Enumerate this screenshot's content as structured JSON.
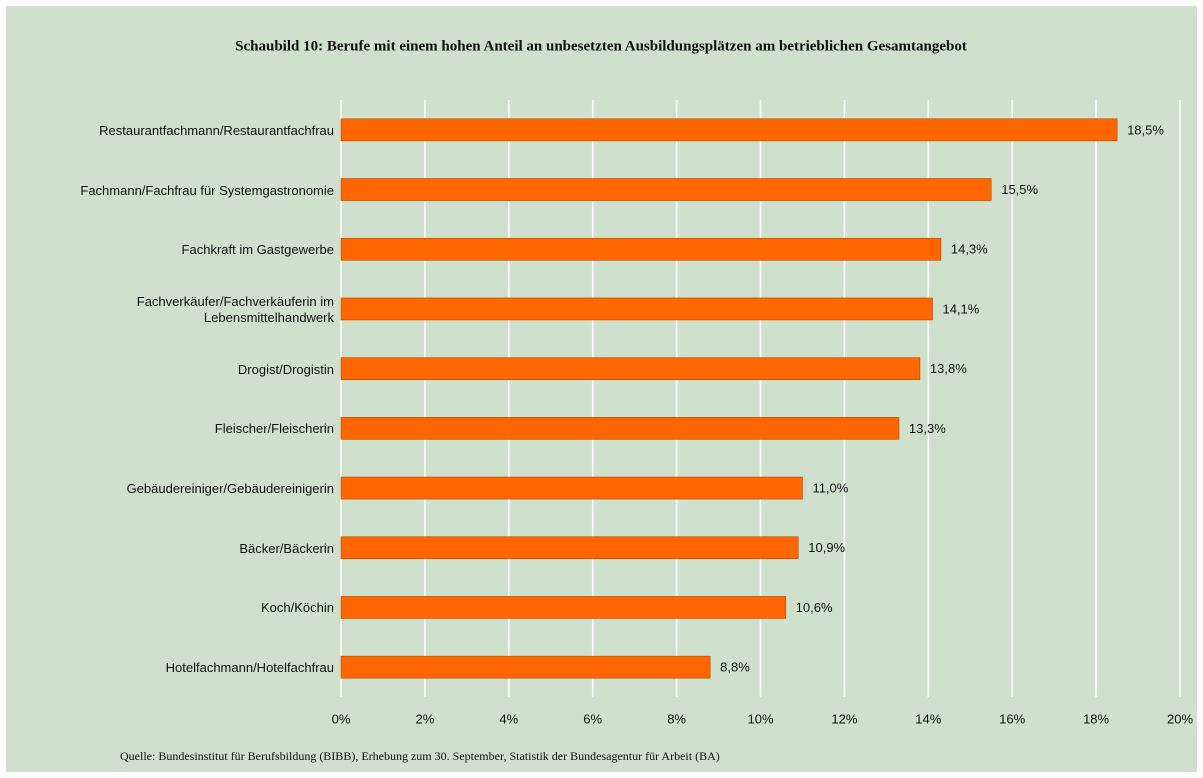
{
  "chart_data": {
    "type": "barh",
    "title": "Schaubild 10: Berufe mit einem hohen Anteil an unbesetzten Ausbildungsplätzen am betrieblichen Gesamtangebot",
    "source": "Quelle: Bundesinstitut für Berufsbildung (BIBB), Erhebung zum 30. September,  Statistik der Bundesagentur für Arbeit (BA)",
    "categories": [
      "Restaurantfachmann/Restaurantfachfrau",
      "Fachmann/Fachfrau für Systemgastronomie",
      "Fachkraft im Gastgewerbe",
      "Fachverkäufer/Fachverkäuferin im Lebensmittelhandwerk",
      "Drogist/Drogistin",
      "Fleischer/Fleischerin",
      "Gebäudereiniger/Gebäudereinigerin",
      "Bäcker/Bäckerin",
      "Koch/Köchin",
      "Hotelfachmann/Hotelfachfrau"
    ],
    "values": [
      18.5,
      15.5,
      14.3,
      14.1,
      13.8,
      13.3,
      11.0,
      10.9,
      10.6,
      8.8
    ],
    "value_labels": [
      "18,5%",
      "15,5%",
      "14,3%",
      "14,1%",
      "13,8%",
      "13,3%",
      "11,0%",
      "10,9%",
      "10,6%",
      "8,8%"
    ],
    "color": "#ff6600",
    "xlim": [
      0,
      20
    ],
    "xticks": [
      {
        "value": 0,
        "label": "0%"
      },
      {
        "value": 2,
        "label": "2%"
      },
      {
        "value": 4,
        "label": "4%"
      },
      {
        "value": 6,
        "label": "6%"
      },
      {
        "value": 8,
        "label": "8%"
      },
      {
        "value": 10,
        "label": "10%"
      },
      {
        "value": 12,
        "label": "12%"
      },
      {
        "value": 14,
        "label": "14%"
      },
      {
        "value": 16,
        "label": "16%"
      },
      {
        "value": 18,
        "label": "18%"
      },
      {
        "value": 20,
        "label": "20%"
      }
    ],
    "grid": true
  }
}
